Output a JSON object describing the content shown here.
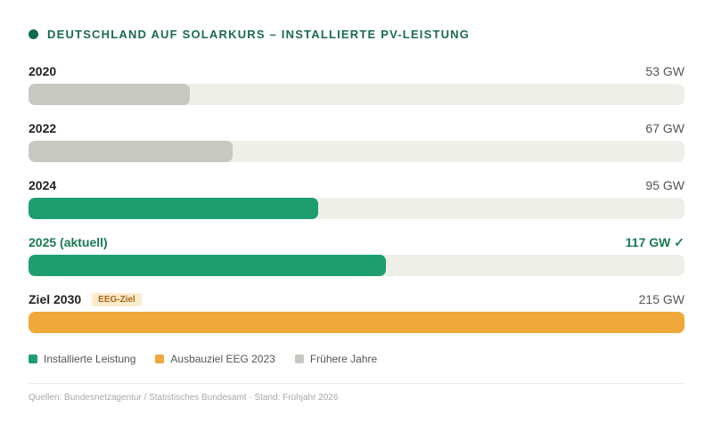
{
  "title": "DEUTSCHLAND AUF SOLARKURS – INSTALLIERTE PV-LEISTUNG",
  "colors": {
    "installed": "#1e9e6f",
    "target": "#f0a83a",
    "earlier": "#c8c8c2",
    "track": "#efefea",
    "accent_text": "#1a6b4f"
  },
  "chart_data": {
    "type": "bar",
    "orientation": "horizontal",
    "unit": "GW",
    "xlim": [
      0,
      215
    ],
    "categories": [
      "2020",
      "2022",
      "2024",
      "2025 (aktuell)",
      "Ziel 2030"
    ],
    "values": [
      53,
      67,
      95,
      117,
      215
    ],
    "value_labels": [
      "53 GW",
      "67 GW",
      "95 GW",
      "117 GW ✓",
      "215 GW"
    ],
    "series_kind": [
      "earlier",
      "earlier",
      "installed",
      "installed",
      "target"
    ],
    "highlight_index": 3,
    "badges": [
      "",
      "",
      "",
      "",
      "EEG-Ziel"
    ],
    "legend": [
      {
        "label": "Installierte Leistung",
        "kind": "installed"
      },
      {
        "label": "Ausbauziel EEG 2023",
        "kind": "target"
      },
      {
        "label": "Frühere Jahre",
        "kind": "earlier"
      }
    ],
    "legend_position": "bottom-left"
  },
  "source": "Quellen: Bundesnetzagentur / Statistisches Bundesamt · Stand: Frühjahr 2026"
}
